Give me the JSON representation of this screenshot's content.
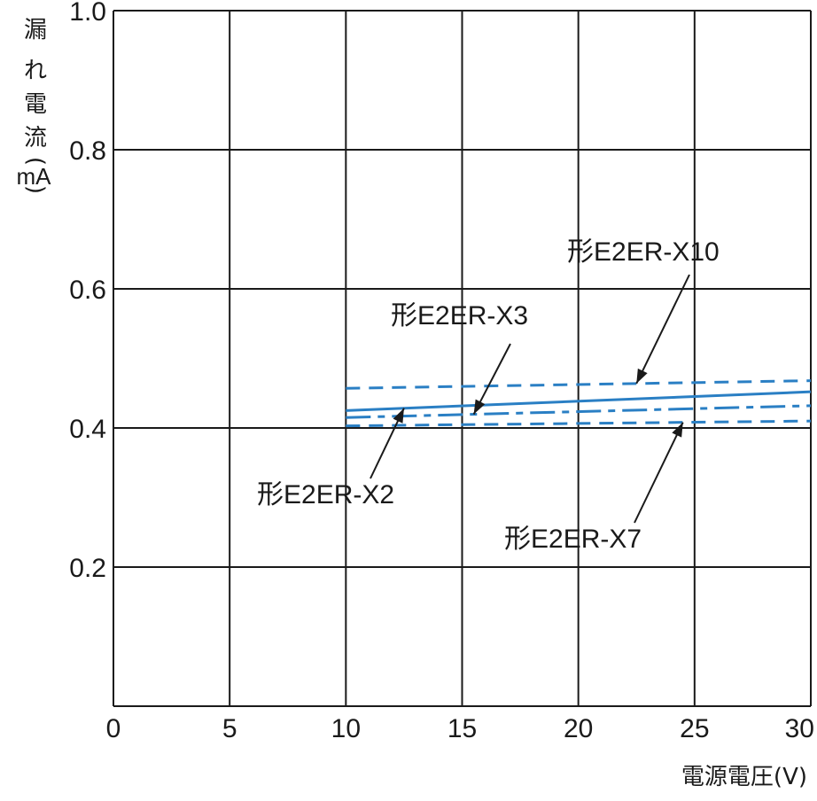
{
  "chart_data": {
    "type": "line",
    "xlabel": "電源電圧(V)",
    "ylabel_chars": [
      "漏",
      "れ",
      "電",
      "流",
      "(",
      "mA",
      ")"
    ],
    "xlim": [
      0,
      30
    ],
    "ylim": [
      0,
      1.0
    ],
    "x_ticks": [
      "0",
      "5",
      "10",
      "15",
      "20",
      "25",
      "30"
    ],
    "y_ticks": [
      "0.2",
      "0.4",
      "0.6",
      "0.8",
      "1.0"
    ],
    "grid": true,
    "line_color": "#2a7fc4",
    "series": [
      {
        "name": "形E2ER-X2",
        "style": "solid",
        "x": [
          10,
          30
        ],
        "y": [
          0.425,
          0.452
        ]
      },
      {
        "name": "形E2ER-X3",
        "style": "dashdot",
        "x": [
          10,
          30
        ],
        "y": [
          0.415,
          0.432
        ]
      },
      {
        "name": "形E2ER-X7",
        "style": "dashed",
        "x": [
          10,
          30
        ],
        "y": [
          0.403,
          0.41
        ]
      },
      {
        "name": "形E2ER-X10",
        "style": "dashed",
        "x": [
          10,
          30
        ],
        "y": [
          0.457,
          0.468
        ]
      }
    ]
  }
}
